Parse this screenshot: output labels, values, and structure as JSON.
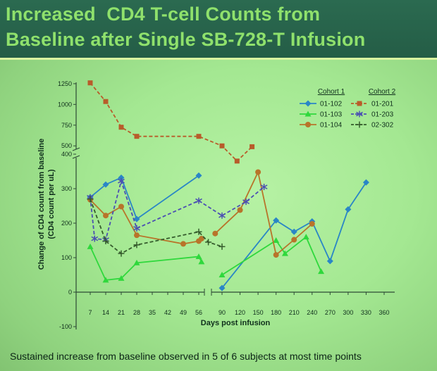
{
  "slide": {
    "title_line1": "Increased  CD4 T-cell Counts from",
    "title_line2": "Baseline after Single SB-728-T Infusion",
    "footnote": "Sustained increase from baseline observed in 5 of 6 subjects at most time points",
    "colors": {
      "title_band": "#245d46",
      "title_text": "#8fe16c",
      "background": "#a4e892"
    }
  },
  "chart_data": {
    "type": "line",
    "xlabel": "Days post infusion",
    "ylabel_line1": "Change of CD4 count from baseline",
    "ylabel_line2": "(CD4 count per uL)",
    "x_ticks": [
      7,
      14,
      21,
      28,
      35,
      42,
      49,
      56,
      90,
      120,
      150,
      180,
      210,
      240,
      270,
      300,
      330,
      360
    ],
    "y_ticks_lower": [
      -100,
      0,
      100,
      200,
      300,
      400
    ],
    "y_ticks_upper": [
      500,
      750,
      1000,
      1250
    ],
    "ylim_lower": [
      -100,
      400
    ],
    "ylim_upper": [
      400,
      1300
    ],
    "x_axis_break_between": [
      56,
      90
    ],
    "y_axis_break_at": 400,
    "legend": {
      "cohort1_label": "Cohort 1",
      "cohort2_label": "Cohort 2",
      "placement": "top-right"
    },
    "series": [
      {
        "name": "01-102",
        "cohort": 1,
        "color": "#2a86c6",
        "marker": "diamond",
        "dash": "solid",
        "segments": [
          [
            [
              7,
              275
            ],
            [
              14,
              312
            ],
            [
              21,
              332
            ],
            [
              28,
              212
            ],
            [
              56,
              338
            ]
          ],
          [
            [
              90,
              12
            ],
            [
              180,
              208
            ],
            [
              210,
              175
            ],
            [
              240,
              205
            ],
            [
              270,
              90
            ],
            [
              300,
              240
            ],
            [
              330,
              318
            ]
          ]
        ]
      },
      {
        "name": "01-103",
        "cohort": 1,
        "color": "#2fd83c",
        "marker": "triangle",
        "dash": "solid",
        "segments": [
          [
            [
              7,
              132
            ],
            [
              14,
              35
            ],
            [
              21,
              40
            ],
            [
              28,
              85
            ],
            [
              56,
              103
            ],
            [
              60,
              88
            ]
          ],
          [
            [
              90,
              50
            ],
            [
              180,
              150
            ],
            [
              195,
              112
            ],
            [
              230,
              160
            ],
            [
              255,
              60
            ]
          ]
        ]
      },
      {
        "name": "01-104",
        "cohort": 1,
        "color": "#b8742a",
        "marker": "circle",
        "dash": "solid",
        "segments": [
          [
            [
              7,
              268
            ],
            [
              14,
              222
            ],
            [
              21,
              248
            ],
            [
              28,
              165
            ],
            [
              49,
              140
            ],
            [
              56,
              148
            ],
            [
              60,
              155
            ]
          ],
          [
            [
              80,
              170
            ],
            [
              120,
              238
            ],
            [
              150,
              348
            ],
            [
              180,
              108
            ],
            [
              210,
              152
            ],
            [
              240,
              198
            ]
          ]
        ]
      },
      {
        "name": "01-201",
        "cohort": 2,
        "color": "#b85c2a",
        "marker": "square",
        "dash": "dashed",
        "segments": [
          [
            [
              7,
              1260
            ],
            [
              14,
              1035
            ],
            [
              21,
              725
            ],
            [
              28,
              615
            ],
            [
              56,
              615
            ],
            [
              90,
              500
            ],
            [
              115,
              380
            ],
            [
              140,
              490
            ]
          ]
        ]
      },
      {
        "name": "01-203",
        "cohort": 2,
        "color": "#4b4fb2",
        "marker": "asterisk",
        "dash": "dashed",
        "segments": [
          [
            [
              7,
              275
            ],
            [
              9,
              155
            ],
            [
              14,
              152
            ],
            [
              21,
              322
            ],
            [
              28,
              185
            ],
            [
              56,
              265
            ],
            [
              90,
              222
            ],
            [
              130,
              262
            ],
            [
              160,
              305
            ]
          ]
        ]
      },
      {
        "name": "02-302",
        "cohort": 2,
        "color": "#355b2c",
        "marker": "plus",
        "dash": "dashed",
        "segments": [
          [
            [
              7,
              270
            ],
            [
              14,
              148
            ],
            [
              21,
              112
            ],
            [
              28,
              137
            ],
            [
              56,
              175
            ],
            [
              70,
              145
            ],
            [
              90,
              132
            ]
          ]
        ]
      }
    ]
  }
}
